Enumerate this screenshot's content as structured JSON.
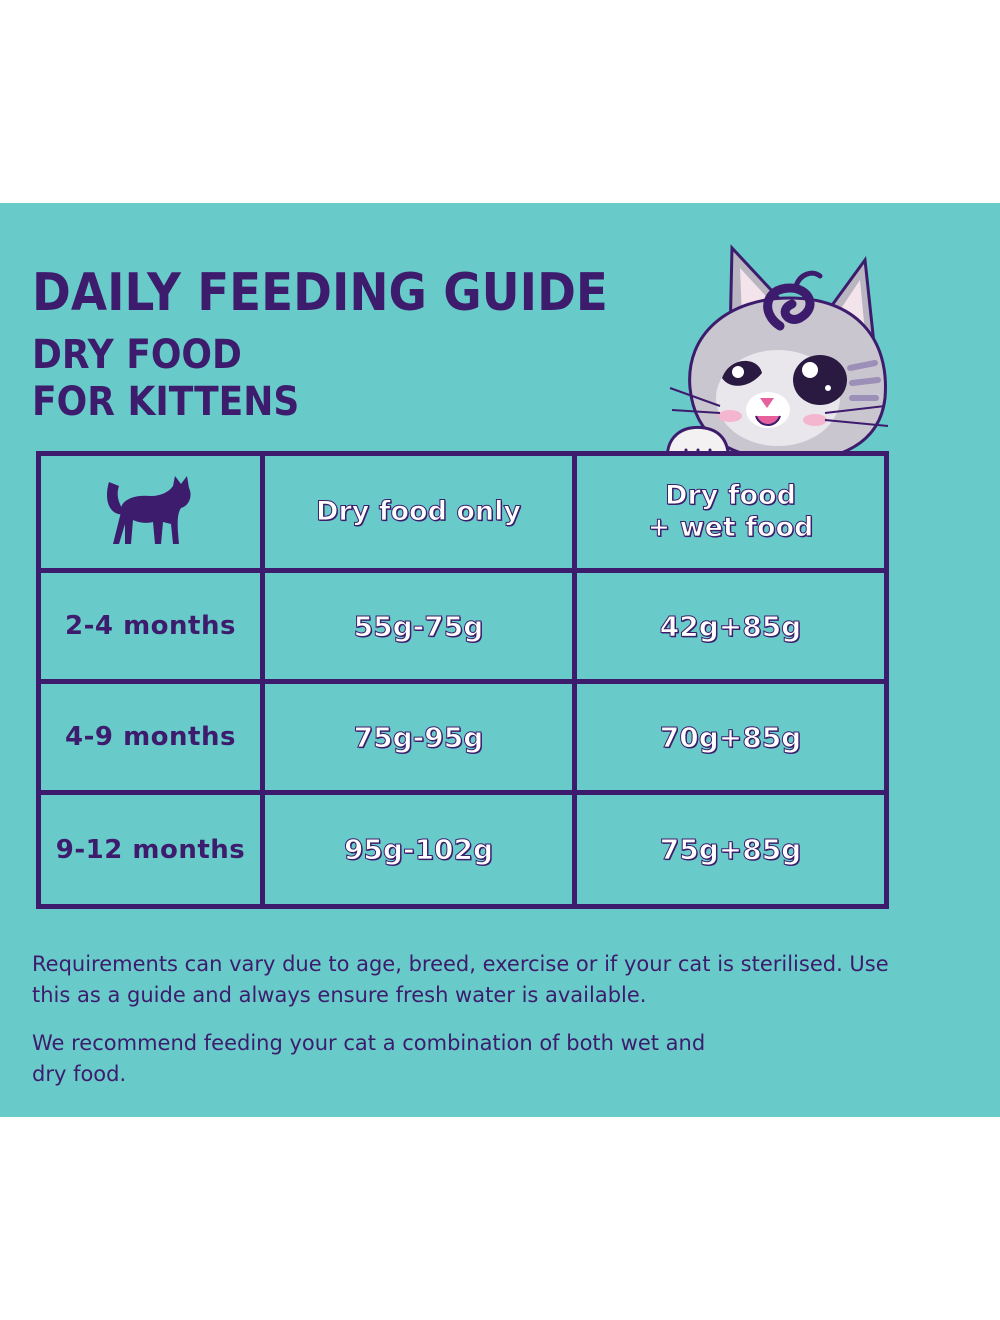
{
  "guide": {
    "title": "DAILY FEEDING GUIDE",
    "subtitle_line1": "DRY FOOD",
    "subtitle_line2": "FOR KITTENS"
  },
  "table": {
    "header_icon": "cat-silhouette-icon",
    "columns": [
      "Dry food only",
      "Dry food\n+ wet food"
    ],
    "rows": [
      {
        "age": "2-4 months",
        "dry_only": "55g-75g",
        "dry_plus_wet": "42g+85g"
      },
      {
        "age": "4-9 months",
        "dry_only": "75g-95g",
        "dry_plus_wet": "70g+85g"
      },
      {
        "age": "9-12 months",
        "dry_only": "95g-102g",
        "dry_plus_wet": "75g+85g"
      }
    ]
  },
  "notes": {
    "requirements": "Requirements can vary due to age, breed, exercise or if your cat is sterilised. Use this as a guide and always ensure fresh water is available.",
    "recommendation": "We recommend feeding your cat a combination of both wet and dry food."
  },
  "colors": {
    "background": "#68cbc9",
    "ink": "#3d1c6d",
    "cell_text": "#ffffff"
  },
  "mascot": "kitten-peeking-icon"
}
